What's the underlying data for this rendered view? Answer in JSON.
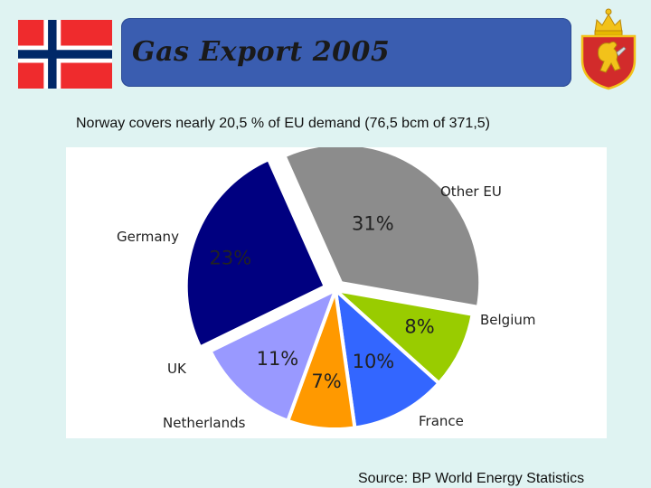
{
  "header": {
    "title": "Gas Export 2005",
    "subtitle": "Norway covers nearly 20,5 % of EU demand (76,5 bcm of 371,5)"
  },
  "colors": {
    "background": "#dff3f2",
    "title_bar": "#3a5db0",
    "flag_red": "#ef2b2d",
    "flag_blue": "#002868",
    "crest_red": "#d22b2b",
    "crest_gold": "#f2c21a"
  },
  "chart_data": {
    "type": "pie",
    "title": "",
    "slices": [
      {
        "name": "Other EU",
        "value": 31,
        "label": "31%",
        "color": "#8c8c8c"
      },
      {
        "name": "Belgium",
        "value": 8,
        "label": "8%",
        "color": "#99cc00"
      },
      {
        "name": "France",
        "value": 10,
        "label": "10%",
        "color": "#3366ff"
      },
      {
        "name": "Netherlands",
        "value": 7,
        "label": "7%",
        "color": "#ff9900"
      },
      {
        "name": "UK",
        "value": 11,
        "label": "11%",
        "color": "#9999ff"
      },
      {
        "name": "Germany",
        "value": 23,
        "label": "23%",
        "color": "#000080"
      }
    ]
  },
  "footer": {
    "source": "Source: BP World Energy Statistics"
  }
}
